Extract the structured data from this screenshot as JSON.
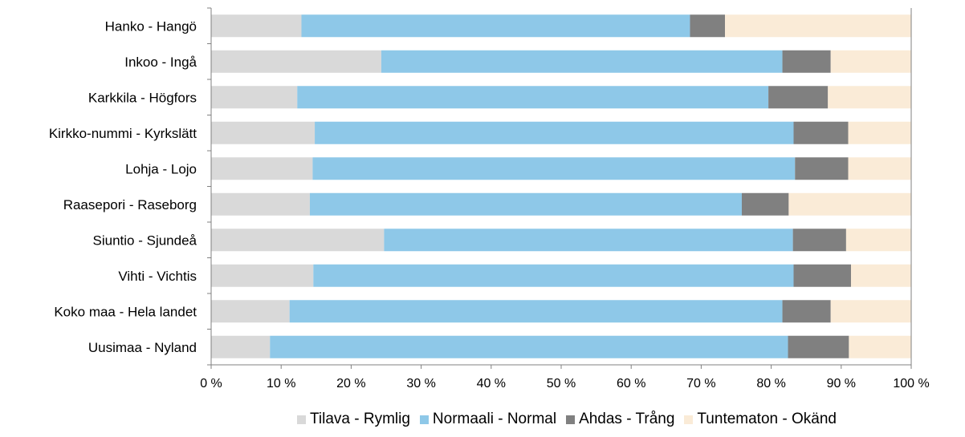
{
  "chart_data": {
    "type": "bar",
    "orientation": "horizontal",
    "stacked": "percent",
    "categories": [
      "Hanko - Hangö",
      "Inkoo - Ingå",
      "Karkkila - Högfors",
      "Kirkko-nummi - Kyrkslätt",
      "Lohja - Lojo",
      "Raasepori - Raseborg",
      "Siuntio - Sjundeå",
      "Vihti - Vichtis",
      "Koko maa - Hela landet",
      "Uusimaa - Nyland"
    ],
    "series": [
      {
        "name": "Tilava - Rymlig",
        "color": "#d9d9d9",
        "values": [
          12.9,
          24.3,
          12.3,
          14.8,
          14.5,
          14.1,
          24.7,
          14.6,
          11.2,
          8.4
        ]
      },
      {
        "name": "Normaali - Normal",
        "color": "#8ec8e8",
        "values": [
          55.5,
          57.3,
          67.3,
          68.4,
          68.9,
          61.7,
          58.4,
          68.6,
          70.4,
          74.0
        ]
      },
      {
        "name": "Ahdas - Trång",
        "color": "#808080",
        "values": [
          5.0,
          6.9,
          8.5,
          7.8,
          7.6,
          6.7,
          7.6,
          8.2,
          6.9,
          8.7
        ]
      },
      {
        "name": "Tuntematon - Okänd",
        "color": "#faebd7",
        "values": [
          26.6,
          11.5,
          11.9,
          9.0,
          9.0,
          17.5,
          9.3,
          8.6,
          11.5,
          8.9
        ]
      }
    ],
    "x_ticks": [
      "0 %",
      "10 %",
      "20 %",
      "30 %",
      "40 %",
      "50 %",
      "60 %",
      "70 %",
      "80 %",
      "90 %",
      "100 %"
    ],
    "xlim": [
      0,
      100
    ],
    "grid": false,
    "legend_position": "bottom"
  }
}
